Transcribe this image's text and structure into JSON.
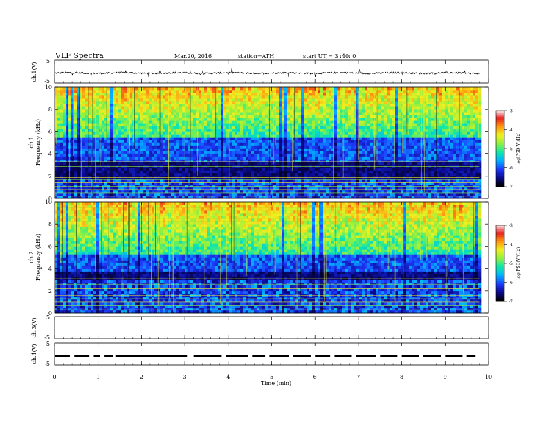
{
  "header": {
    "title": "VLF  Spectra",
    "date": "Mar.20, 2016",
    "station": "station=ATH",
    "start": "start  UT  =   3  :40: 0"
  },
  "colors": {
    "background": "#ffffff",
    "trace": "#000000",
    "colormap": [
      "#000000",
      "#0a0a90",
      "#1e3cff",
      "#00b4ff",
      "#10e8a8",
      "#90f040",
      "#f0f020",
      "#ff9a10",
      "#e81e1e",
      "#ffffff"
    ]
  },
  "chart_data": {
    "type": "heatmap",
    "x_axis": {
      "label": "Time  (min)",
      "range": [
        0,
        10
      ],
      "ticks": [
        "0",
        "1",
        "2",
        "3",
        "4",
        "5",
        "6",
        "7",
        "8",
        "9",
        "10"
      ]
    },
    "panels": [
      {
        "id": "ch1v",
        "label": "ch.1(V)",
        "type": "line",
        "ylim": [
          -5,
          5
        ],
        "ticks": [
          "5",
          "-5"
        ],
        "mean": -0.6,
        "noise": 0.35
      },
      {
        "id": "ch1",
        "label": "ch.1",
        "ylabel": "Frequency  (kHz)",
        "type": "heatmap",
        "ylim": [
          0,
          10
        ],
        "ticks": [
          "0",
          "2",
          "4",
          "6",
          "8",
          "10"
        ],
        "colorbar": {
          "label": "log(PSD(V²/Hz)",
          "range": [
            -7,
            -3
          ],
          "ticks": [
            "-3",
            "-4",
            "-5",
            "-6",
            "-7"
          ]
        },
        "dark_band_khz": [
          1.8,
          3.2
        ],
        "blue_band_khz": [
          3.2,
          5.5
        ],
        "lines_khz": [
          0.2,
          0.5,
          0.8,
          1.1,
          1.4,
          1.7,
          1.9,
          2.9,
          3.3
        ]
      },
      {
        "id": "ch2",
        "label": "ch.2",
        "ylabel": "Frequency  (kHz)",
        "type": "heatmap",
        "ylim": [
          0,
          10
        ],
        "ticks": [
          "0",
          "2",
          "4",
          "6",
          "8",
          "10"
        ],
        "colorbar": {
          "label": "log(PSD(V²/Hz)",
          "range": [
            -7,
            -3
          ],
          "ticks": [
            "-3",
            "-4",
            "-5",
            "-6",
            "-7"
          ]
        },
        "dark_band_khz": [
          3.0,
          3.8
        ],
        "blue_band_khz": [
          3.8,
          5.2
        ],
        "lines_khz": [
          0.3,
          0.7,
          1.0,
          1.3,
          1.6,
          1.9,
          2.2,
          2.6,
          3.1
        ]
      },
      {
        "id": "ch3v",
        "label": "ch.3(V)",
        "type": "line",
        "ylim": [
          -5,
          5
        ],
        "ticks": [
          "5",
          "-5"
        ],
        "empty": true
      },
      {
        "id": "ch4v",
        "label": "ch.4(V)",
        "type": "dashed",
        "ylim": [
          -5,
          5
        ],
        "ticks": [
          "5",
          "-5"
        ],
        "level": -0.8,
        "segments_min": [
          [
            0.0,
            0.35
          ],
          [
            0.45,
            0.8
          ],
          [
            0.9,
            1.05
          ],
          [
            1.15,
            1.35
          ],
          [
            1.4,
            3.05
          ],
          [
            3.2,
            3.85
          ],
          [
            3.95,
            4.45
          ],
          [
            4.55,
            4.85
          ],
          [
            4.95,
            5.4
          ],
          [
            5.5,
            5.9
          ],
          [
            6.0,
            6.35
          ],
          [
            6.45,
            6.85
          ],
          [
            6.95,
            7.4
          ],
          [
            7.5,
            7.9
          ],
          [
            8.0,
            8.4
          ],
          [
            8.5,
            8.9
          ],
          [
            9.0,
            9.4
          ],
          [
            9.5,
            9.7
          ]
        ]
      }
    ],
    "data_end_min": 9.8
  }
}
